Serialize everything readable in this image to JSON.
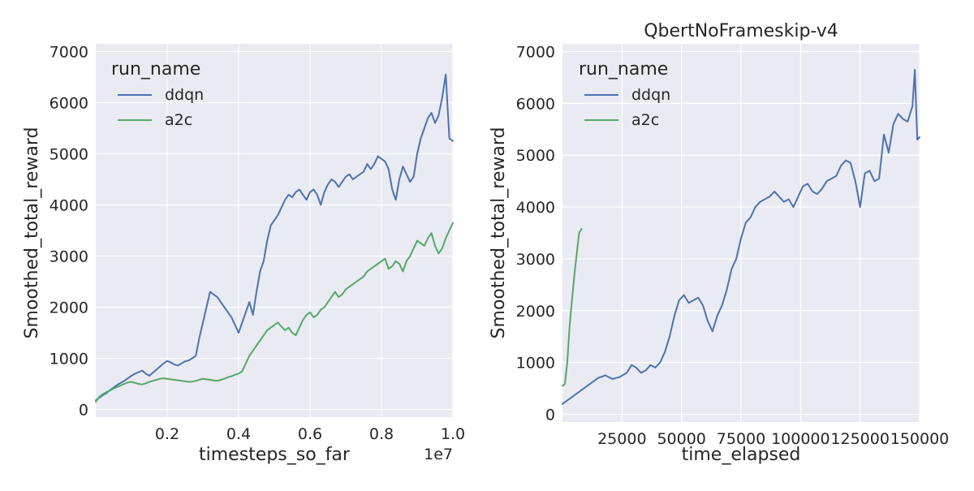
{
  "colors": {
    "axes_bg": "#EAEAF2",
    "grid": "#FFFFFF",
    "text": "#262626",
    "ddqn": "#4C72B0",
    "a2c": "#55A868"
  },
  "chart_data": [
    {
      "type": "line",
      "title": "",
      "xlabel": "timesteps_so_far",
      "ylabel": "Smoothed_total_reward",
      "x_offset_text": "1e7",
      "xlim": [
        0,
        1.0
      ],
      "ylim": [
        -150,
        7150
      ],
      "x_ticks": [
        0.2,
        0.4,
        0.6,
        0.8,
        1.0
      ],
      "x_tick_labels": [
        "0.2",
        "0.4",
        "0.6",
        "0.8",
        "1.0"
      ],
      "y_ticks": [
        0,
        1000,
        2000,
        3000,
        4000,
        5000,
        6000,
        7000
      ],
      "y_tick_labels": [
        "0",
        "1000",
        "2000",
        "3000",
        "4000",
        "5000",
        "6000",
        "7000"
      ],
      "grid": true,
      "legend_title": "run_name",
      "legend_placement": "top-left",
      "series": [
        {
          "name": "ddqn",
          "color": "#4C72B0",
          "x": [
            0.0,
            0.01,
            0.02,
            0.03,
            0.04,
            0.05,
            0.06,
            0.07,
            0.08,
            0.09,
            0.1,
            0.11,
            0.12,
            0.13,
            0.14,
            0.15,
            0.16,
            0.17,
            0.18,
            0.19,
            0.2,
            0.21,
            0.22,
            0.23,
            0.24,
            0.25,
            0.26,
            0.27,
            0.28,
            0.29,
            0.3,
            0.31,
            0.32,
            0.33,
            0.34,
            0.35,
            0.36,
            0.37,
            0.38,
            0.39,
            0.4,
            0.41,
            0.42,
            0.43,
            0.44,
            0.45,
            0.46,
            0.47,
            0.48,
            0.49,
            0.5,
            0.51,
            0.52,
            0.53,
            0.54,
            0.55,
            0.56,
            0.57,
            0.58,
            0.59,
            0.6,
            0.61,
            0.62,
            0.63,
            0.64,
            0.65,
            0.66,
            0.67,
            0.68,
            0.69,
            0.7,
            0.71,
            0.72,
            0.73,
            0.74,
            0.75,
            0.76,
            0.77,
            0.78,
            0.79,
            0.8,
            0.81,
            0.82,
            0.83,
            0.84,
            0.85,
            0.86,
            0.87,
            0.88,
            0.89,
            0.9,
            0.91,
            0.92,
            0.93,
            0.94,
            0.95,
            0.96,
            0.97,
            0.98,
            0.99,
            1.0
          ],
          "y": [
            180,
            230,
            280,
            320,
            380,
            430,
            480,
            520,
            560,
            610,
            660,
            700,
            730,
            760,
            700,
            660,
            720,
            780,
            840,
            900,
            950,
            920,
            880,
            860,
            900,
            940,
            960,
            1000,
            1050,
            1400,
            1700,
            2000,
            2300,
            2250,
            2200,
            2100,
            2000,
            1900,
            1800,
            1650,
            1500,
            1700,
            1900,
            2100,
            1850,
            2300,
            2700,
            2900,
            3300,
            3600,
            3700,
            3800,
            3950,
            4100,
            4200,
            4150,
            4250,
            4300,
            4200,
            4100,
            4250,
            4300,
            4200,
            4000,
            4250,
            4400,
            4500,
            4450,
            4350,
            4450,
            4550,
            4600,
            4500,
            4550,
            4600,
            4650,
            4800,
            4700,
            4800,
            4950,
            4900,
            4850,
            4700,
            4300,
            4100,
            4500,
            4750,
            4600,
            4450,
            4550,
            5000,
            5300,
            5500,
            5700,
            5800,
            5600,
            5750,
            6100,
            6550,
            5300,
            5250
          ]
        },
        {
          "name": "a2c",
          "color": "#55A868",
          "x": [
            0.0,
            0.01,
            0.02,
            0.03,
            0.04,
            0.05,
            0.06,
            0.07,
            0.08,
            0.09,
            0.1,
            0.11,
            0.12,
            0.13,
            0.14,
            0.15,
            0.16,
            0.17,
            0.18,
            0.19,
            0.2,
            0.21,
            0.22,
            0.23,
            0.24,
            0.25,
            0.26,
            0.27,
            0.28,
            0.29,
            0.3,
            0.31,
            0.32,
            0.33,
            0.34,
            0.35,
            0.36,
            0.37,
            0.38,
            0.39,
            0.4,
            0.41,
            0.42,
            0.43,
            0.44,
            0.45,
            0.46,
            0.47,
            0.48,
            0.49,
            0.5,
            0.51,
            0.52,
            0.53,
            0.54,
            0.55,
            0.56,
            0.57,
            0.58,
            0.59,
            0.6,
            0.61,
            0.62,
            0.63,
            0.64,
            0.65,
            0.66,
            0.67,
            0.68,
            0.69,
            0.7,
            0.71,
            0.72,
            0.73,
            0.74,
            0.75,
            0.76,
            0.77,
            0.78,
            0.79,
            0.8,
            0.81,
            0.82,
            0.83,
            0.84,
            0.85,
            0.86,
            0.87,
            0.88,
            0.89,
            0.9,
            0.91,
            0.92,
            0.93,
            0.94,
            0.95,
            0.96,
            0.97,
            0.98,
            0.99,
            1.0
          ],
          "y": [
            150,
            250,
            300,
            340,
            370,
            410,
            440,
            470,
            500,
            530,
            540,
            520,
            500,
            490,
            510,
            540,
            560,
            580,
            600,
            610,
            600,
            590,
            580,
            570,
            560,
            550,
            540,
            545,
            560,
            580,
            600,
            590,
            580,
            570,
            560,
            580,
            600,
            630,
            650,
            680,
            700,
            750,
            900,
            1050,
            1150,
            1250,
            1350,
            1450,
            1550,
            1600,
            1650,
            1700,
            1620,
            1550,
            1600,
            1500,
            1450,
            1600,
            1750,
            1850,
            1900,
            1800,
            1850,
            1950,
            2000,
            2100,
            2200,
            2300,
            2200,
            2250,
            2350,
            2400,
            2450,
            2500,
            2550,
            2600,
            2700,
            2750,
            2800,
            2850,
            2900,
            2950,
            2750,
            2800,
            2900,
            2850,
            2700,
            2900,
            3000,
            3150,
            3300,
            3250,
            3200,
            3350,
            3450,
            3200,
            3050,
            3150,
            3350,
            3500,
            3650
          ]
        }
      ]
    },
    {
      "type": "line",
      "title": "QbertNoFrameskip-v4",
      "xlabel": "time_elapsed",
      "ylabel": "Smoothed_total_reward",
      "xlim": [
        0,
        150000
      ],
      "ylim": [
        -150,
        7150
      ],
      "x_ticks": [
        25000,
        50000,
        75000,
        100000,
        125000,
        150000
      ],
      "x_tick_labels": [
        "25000",
        "50000",
        "75000",
        "100000",
        "125000",
        "150000"
      ],
      "y_ticks": [
        0,
        1000,
        2000,
        3000,
        4000,
        5000,
        6000,
        7000
      ],
      "y_tick_labels": [
        "0",
        "1000",
        "2000",
        "3000",
        "4000",
        "5000",
        "6000",
        "7000"
      ],
      "grid": true,
      "legend_title": "run_name",
      "legend_placement": "top-left",
      "series": [
        {
          "name": "ddqn",
          "color": "#4C72B0",
          "x": [
            0,
            3000,
            6000,
            9000,
            12000,
            15000,
            18000,
            21000,
            24000,
            27000,
            29000,
            31000,
            33000,
            35000,
            37000,
            39000,
            41000,
            43000,
            45000,
            47000,
            49000,
            51000,
            53000,
            55000,
            57000,
            59000,
            61000,
            63000,
            65000,
            67000,
            69000,
            71000,
            73000,
            75000,
            77000,
            79000,
            81000,
            83000,
            85000,
            87000,
            89000,
            91000,
            93000,
            95000,
            97000,
            99000,
            101000,
            103000,
            105000,
            107000,
            109000,
            111000,
            113000,
            115000,
            117000,
            119000,
            121000,
            123000,
            125000,
            127000,
            129000,
            131000,
            133000,
            135000,
            137000,
            139000,
            141000,
            143000,
            145000,
            147000,
            148000,
            149000,
            150000
          ],
          "y": [
            200,
            300,
            400,
            500,
            600,
            700,
            750,
            680,
            720,
            800,
            950,
            900,
            800,
            850,
            950,
            900,
            1000,
            1200,
            1500,
            1900,
            2200,
            2300,
            2150,
            2200,
            2250,
            2100,
            1800,
            1600,
            1900,
            2100,
            2400,
            2800,
            3000,
            3400,
            3700,
            3800,
            4000,
            4100,
            4150,
            4200,
            4300,
            4200,
            4100,
            4150,
            4000,
            4200,
            4400,
            4450,
            4300,
            4250,
            4350,
            4500,
            4550,
            4600,
            4800,
            4900,
            4850,
            4500,
            4000,
            4650,
            4700,
            4500,
            4550,
            5400,
            5050,
            5600,
            5800,
            5700,
            5650,
            5950,
            6650,
            5300,
            5350
          ]
        },
        {
          "name": "a2c",
          "color": "#55A868",
          "x": [
            0,
            1000,
            2000,
            3000,
            4000,
            5000,
            6000,
            7000,
            8000
          ],
          "y": [
            550,
            580,
            1000,
            1700,
            2200,
            2700,
            3100,
            3500,
            3580
          ]
        }
      ]
    }
  ]
}
